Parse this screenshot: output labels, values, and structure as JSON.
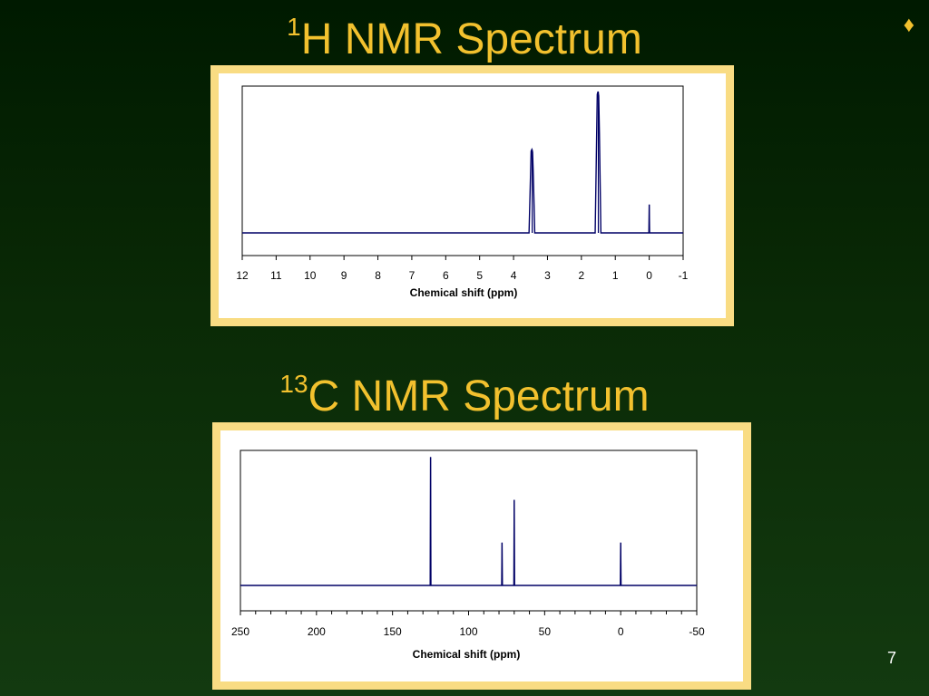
{
  "slide": {
    "title1_sup": "1",
    "title1_main": "H NMR Spectrum",
    "title2_sup": "13",
    "title2_main": "C NMR Spectrum",
    "bullet_icon": "diamond-icon",
    "page_number": "7"
  },
  "colors": {
    "title": "#f2c12e",
    "frame": "#f9dc83",
    "peak": "#000066"
  },
  "chart_data": [
    {
      "type": "line",
      "title": "1H NMR Spectrum",
      "xlabel": "Chemical shift (ppm)",
      "ylabel": "",
      "xlim": [
        12,
        -1
      ],
      "x_reversed": true,
      "ticks": [
        12,
        11,
        10,
        9,
        8,
        7,
        6,
        5,
        4,
        3,
        2,
        1,
        0,
        -1
      ],
      "tick_labels": [
        "12",
        "11",
        "10",
        "9",
        "8",
        "7",
        "6",
        "5",
        "4",
        "3",
        "2",
        "1",
        "0",
        "-1"
      ],
      "ylim": [
        0,
        1
      ],
      "grid": false,
      "peaks": [
        {
          "x": 3.45,
          "height": 0.59,
          "shape": "multiplet"
        },
        {
          "x": 1.5,
          "height": 1.0,
          "shape": "multiplet"
        },
        {
          "x": 0.0,
          "height": 0.2,
          "shape": "singlet"
        }
      ]
    },
    {
      "type": "line",
      "title": "13C NMR Spectrum",
      "xlabel": "Chemical shift (ppm)",
      "ylabel": "",
      "xlim": [
        250,
        -50
      ],
      "x_reversed": true,
      "ticks": [
        250,
        200,
        150,
        100,
        50,
        0,
        -50
      ],
      "tick_labels": [
        "250",
        "200",
        "150",
        "100",
        "50",
        "0",
        "-50"
      ],
      "minor_tick_step": 10,
      "ylim": [
        0,
        1
      ],
      "grid": false,
      "peaks": [
        {
          "x": 125,
          "height": 0.99
        },
        {
          "x": 78,
          "height": 0.33
        },
        {
          "x": 70,
          "height": 0.66
        },
        {
          "x": 0,
          "height": 0.33
        }
      ]
    }
  ]
}
